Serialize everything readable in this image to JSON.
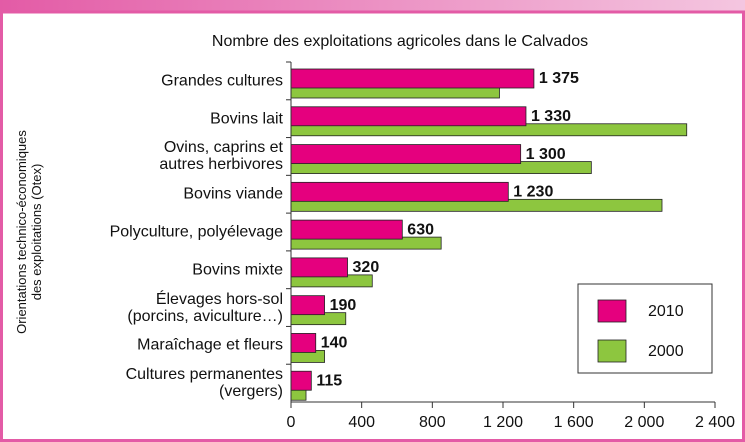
{
  "chart_data": {
    "type": "bar",
    "orientation": "horizontal",
    "title": "Nombre des exploitations agricoles dans le Calvados",
    "y_label": "Orientations technico-économiques\ndes exploitations (Otex)",
    "categories": [
      "Grandes cultures",
      "Bovins lait",
      "Ovins, caprins et\nautres herbivores",
      "Bovins viande",
      "Polyculture, polyélevage",
      "Bovins mixte",
      "Élevages hors-sol\n(porcins, aviculture…)",
      "Maraîchage et fleurs",
      "Cultures permanentes\n(vergers)"
    ],
    "series": [
      {
        "name": "2010",
        "color": "#e5007e",
        "values": [
          1375,
          1330,
          1300,
          1230,
          630,
          320,
          190,
          140,
          115
        ],
        "value_labels": [
          "1 375",
          "1 330",
          "1 300",
          "1 230",
          "630",
          "320",
          "190",
          "140",
          "115"
        ]
      },
      {
        "name": "2000",
        "color": "#8dc63f",
        "values": [
          1180,
          2240,
          1700,
          2100,
          850,
          460,
          310,
          190,
          85
        ]
      }
    ],
    "xlim": [
      0,
      2400
    ],
    "xticks": [
      0,
      400,
      800,
      {
        "value": 1200,
        "label": "1 200"
      },
      {
        "value": 1600,
        "label": "1 600"
      },
      {
        "value": 2000,
        "label": "2 000"
      },
      {
        "value": 2400,
        "label": "2 400"
      }
    ]
  }
}
